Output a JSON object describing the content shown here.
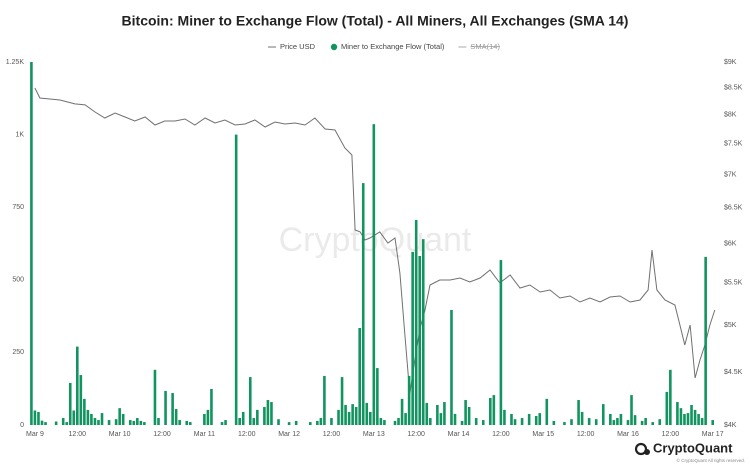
{
  "chart_data": {
    "type": "combo",
    "title": "Bitcoin: Miner to Exchange Flow (Total) - All Miners, All Exchanges (SMA 14)",
    "watermark": "CryptoQuant",
    "footer": {
      "brand": "CryptoQuant",
      "copyright": "© CryptoQuant All rights reserved."
    },
    "xlim": [
      -1.4,
      193.5
    ],
    "xticks": [
      {
        "value": 0,
        "label": "Mar 9"
      },
      {
        "value": 12,
        "label": "12:00"
      },
      {
        "value": 24,
        "label": "Mar 10"
      },
      {
        "value": 36,
        "label": "12:00"
      },
      {
        "value": 48,
        "label": "Mar 11"
      },
      {
        "value": 60,
        "label": "12:00"
      },
      {
        "value": 72,
        "label": "Mar 12"
      },
      {
        "value": 84,
        "label": "12:00"
      },
      {
        "value": 96,
        "label": "Mar 13"
      },
      {
        "value": 108,
        "label": "12:00"
      },
      {
        "value": 120,
        "label": "Mar 14"
      },
      {
        "value": 132,
        "label": "12:00"
      },
      {
        "value": 144,
        "label": "Mar 15"
      },
      {
        "value": 156,
        "label": "12:00"
      },
      {
        "value": 168,
        "label": "Mar 16"
      },
      {
        "value": 180,
        "label": "12:00"
      },
      {
        "value": 192,
        "label": "Mar 17"
      }
    ],
    "ylim": [
      0,
      1250
    ],
    "yticks": [
      0,
      250,
      500,
      750,
      {
        "value": 1000,
        "label": "1K"
      },
      {
        "value": 1250,
        "label": "1.25K"
      }
    ],
    "y2lim": [
      4000,
      9000
    ],
    "y2_log": true,
    "y2ticks": [
      {
        "value": 4000,
        "label": "$4K"
      },
      {
        "value": 4500,
        "label": "$4.5K"
      },
      {
        "value": 5000,
        "label": "$5K"
      },
      {
        "value": 5500,
        "label": "$5.5K"
      },
      {
        "value": 6000,
        "label": "$6K"
      },
      {
        "value": 6500,
        "label": "$6.5K"
      },
      {
        "value": 7000,
        "label": "$7K"
      },
      {
        "value": 7500,
        "label": "$7.5K"
      },
      {
        "value": 8000,
        "label": "$8K"
      },
      {
        "value": 8500,
        "label": "$8.5K"
      },
      {
        "value": 9000,
        "label": "$9K"
      }
    ],
    "grid": false,
    "series": [
      {
        "name": "Price USD",
        "type": "line",
        "axis": "y2",
        "color": "#707070",
        "x": [
          0,
          1.4,
          4.2,
          7.1,
          11.3,
          14.2,
          17,
          19.8,
          22.7,
          25.5,
          28.3,
          31.2,
          34,
          36.8,
          39.7,
          42.5,
          45.3,
          48.2,
          51,
          53.8,
          56.7,
          59.5,
          62.3,
          65.2,
          68,
          70.8,
          73.7,
          76.5,
          79.3,
          82.2,
          85,
          87.8,
          89.8,
          90.7,
          92.1,
          93.5,
          94.9,
          97.7,
          100,
          102,
          103.4,
          104.8,
          106.2,
          107.6,
          109.1,
          110.5,
          111.9,
          114.7,
          117.6,
          120.4,
          123.2,
          126.1,
          128.9,
          131.7,
          134.6,
          137.4,
          140.2,
          143.1,
          145.9,
          148.7,
          151.6,
          154.4,
          157.2,
          160.1,
          162.9,
          165.7,
          168.6,
          171.4,
          173.7,
          174.8,
          176.2,
          178.5,
          181.3,
          182.7,
          184.1,
          185.6,
          187,
          188.4,
          189.8,
          191.2,
          192.6
        ],
        "values": [
          8492,
          8304,
          8286,
          8268,
          8195,
          8177,
          8049,
          7942,
          8031,
          7960,
          7889,
          7960,
          7818,
          7889,
          7889,
          7924,
          7818,
          7942,
          7854,
          7906,
          7818,
          7836,
          7906,
          7783,
          7871,
          7836,
          7854,
          7818,
          7942,
          7749,
          7732,
          7427,
          7312,
          6184,
          6157,
          6047,
          6074,
          6157,
          6007,
          6074,
          5617,
          4891,
          4287,
          4625,
          4968,
          5172,
          5469,
          5530,
          5530,
          5555,
          5506,
          5555,
          5655,
          5494,
          5592,
          5432,
          5469,
          5384,
          5408,
          5312,
          5336,
          5265,
          5312,
          5265,
          5324,
          5336,
          5265,
          5288,
          5408,
          5913,
          5408,
          5288,
          5230,
          5001,
          4783,
          5001,
          4443,
          4625,
          4783,
          5001,
          5172
        ]
      },
      {
        "name": "Miner to Exchange Flow (Total)",
        "type": "bar",
        "color": "#129460",
        "x": [
          -1,
          0,
          1,
          2,
          3,
          6,
          8,
          9,
          10,
          11,
          12,
          13,
          14,
          15,
          16,
          17,
          18,
          19,
          21,
          23,
          24,
          25,
          27,
          28,
          29,
          30,
          31,
          34,
          35,
          37,
          39,
          40,
          41,
          43,
          44,
          48,
          49,
          50,
          53,
          54,
          57,
          58,
          59,
          61,
          62,
          63,
          65,
          66,
          67,
          69,
          72,
          74,
          78,
          80,
          81,
          82,
          84,
          86,
          87,
          88,
          89,
          90,
          91,
          92,
          93,
          94,
          95,
          96,
          97,
          98,
          99,
          102,
          103,
          104,
          105,
          106,
          107,
          108,
          109,
          110,
          111,
          112,
          114,
          115,
          116,
          118,
          119,
          121,
          122,
          123,
          125,
          127,
          129,
          130,
          132,
          133,
          135,
          136,
          138,
          140,
          142,
          143,
          145,
          147,
          150,
          152,
          154,
          155,
          157,
          159,
          161,
          163,
          164,
          165,
          166,
          168,
          169,
          170,
          172,
          173,
          175,
          177,
          179,
          180,
          182,
          183,
          184,
          185,
          186,
          187,
          188,
          189,
          190,
          192
        ],
        "values": [
          1250,
          50,
          45,
          15,
          10,
          12,
          24,
          10,
          145,
          50,
          270,
          172,
          90,
          52,
          38,
          24,
          17,
          41,
          17,
          20,
          58,
          38,
          17,
          14,
          24,
          14,
          10,
          190,
          24,
          117,
          110,
          55,
          17,
          14,
          10,
          38,
          52,
          124,
          10,
          17,
          1000,
          24,
          45,
          165,
          24,
          52,
          62,
          86,
          79,
          20,
          10,
          14,
          10,
          14,
          24,
          169,
          24,
          52,
          165,
          69,
          45,
          72,
          62,
          334,
          833,
          76,
          45,
          1036,
          196,
          24,
          17,
          14,
          24,
          90,
          41,
          169,
          596,
          706,
          582,
          640,
          76,
          24,
          69,
          41,
          79,
          396,
          38,
          14,
          86,
          62,
          24,
          17,
          93,
          103,
          568,
          52,
          38,
          20,
          24,
          38,
          31,
          41,
          90,
          14,
          10,
          20,
          86,
          45,
          24,
          20,
          72,
          38,
          17,
          24,
          38,
          17,
          103,
          34,
          14,
          24,
          10,
          20,
          114,
          190,
          79,
          58,
          38,
          41,
          69,
          52,
          38,
          24,
          579,
          17
        ]
      },
      {
        "name": "SMA(14)",
        "type": "line",
        "color": "#aaaaaa",
        "hidden": true
      }
    ]
  }
}
